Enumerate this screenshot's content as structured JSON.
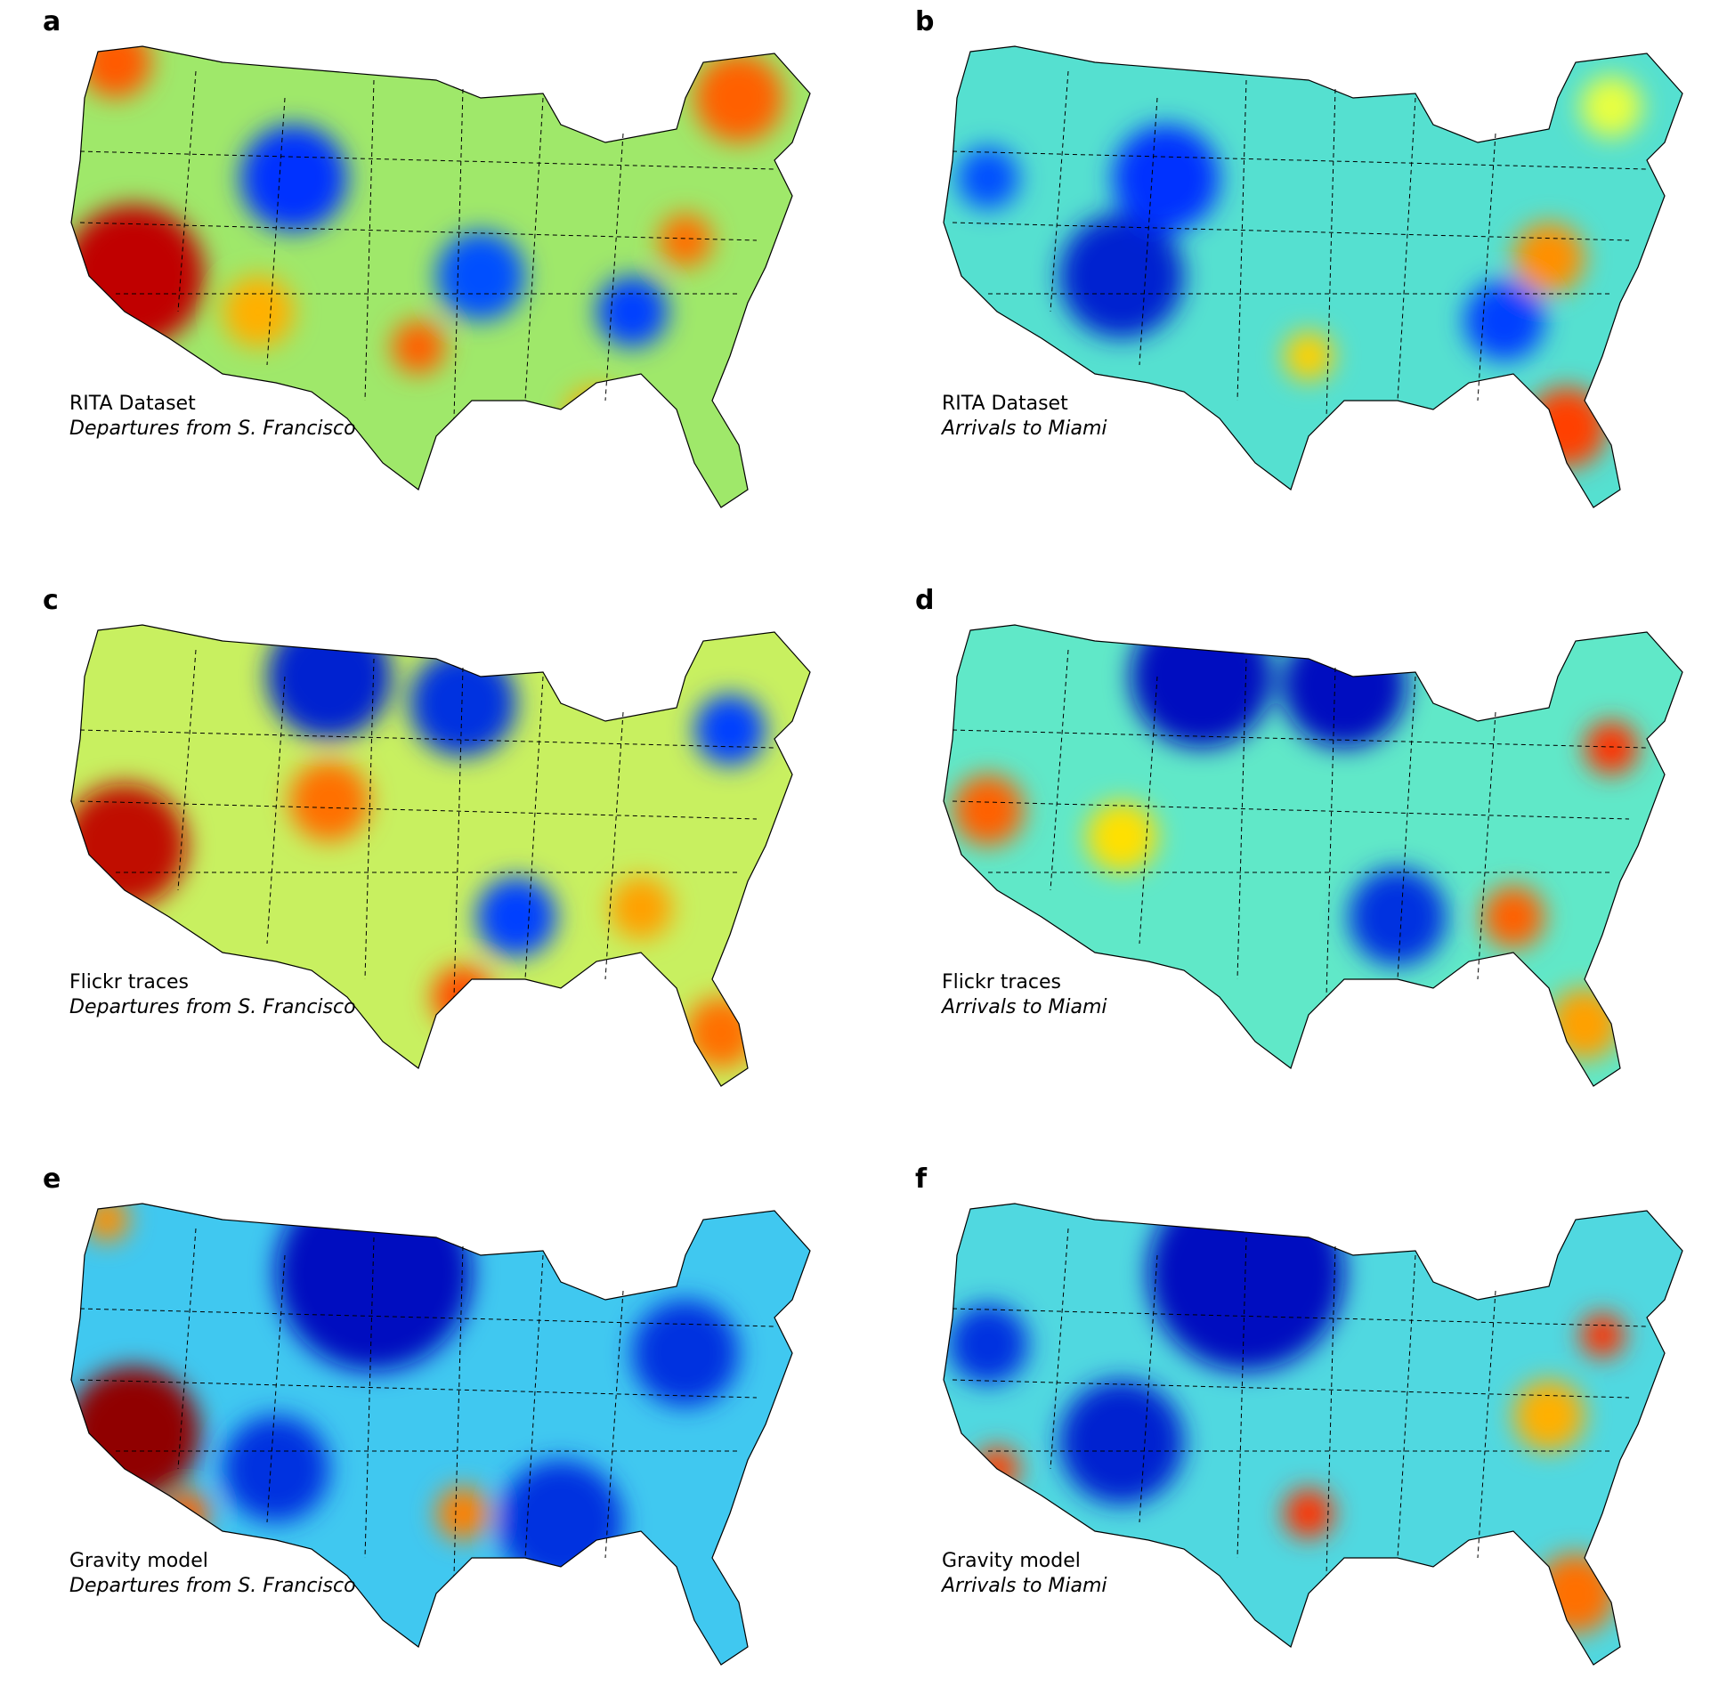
{
  "figure": {
    "panels": [
      {
        "letter": "a",
        "dataset": "RITA Dataset",
        "direction": "Departures from S. Francisco"
      },
      {
        "letter": "b",
        "dataset": "RITA Dataset",
        "direction": "Arrivals to Miami"
      },
      {
        "letter": "c",
        "dataset": "Flickr traces",
        "direction": "Departures from S. Francisco"
      },
      {
        "letter": "d",
        "dataset": "Flickr traces",
        "direction": "Arrivals to Miami"
      },
      {
        "letter": "e",
        "dataset": "Gravity model",
        "direction": "Departures from S. Francisco"
      },
      {
        "letter": "f",
        "dataset": "Gravity model",
        "direction": "Arrivals to Miami"
      }
    ]
  }
}
